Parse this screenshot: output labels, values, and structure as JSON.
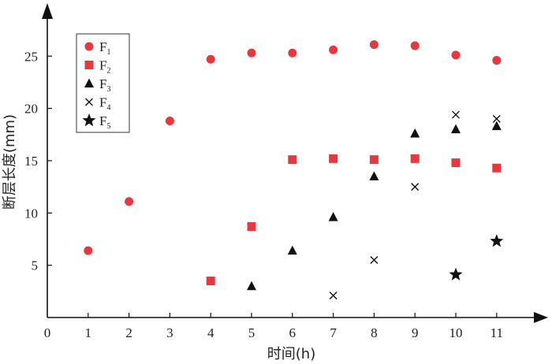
{
  "chart_data": {
    "type": "scatter",
    "xlabel": "时间(h)",
    "ylabel": "断层长度(mm)",
    "xlim": [
      0,
      11.8
    ],
    "ylim": [
      0,
      27.9
    ],
    "x_ticks": [
      0,
      1,
      2,
      3,
      4,
      5,
      6,
      7,
      8,
      9,
      10,
      11
    ],
    "y_ticks": [
      5,
      10,
      15,
      20,
      25
    ],
    "grid": false,
    "legend_placement": "top-left",
    "series": [
      {
        "name": "F",
        "sub": "1",
        "marker": "circle",
        "color": "#e8383d",
        "points": [
          [
            1,
            6.4
          ],
          [
            2,
            11.1
          ],
          [
            3,
            18.8
          ],
          [
            4,
            24.7
          ],
          [
            5,
            25.3
          ],
          [
            6,
            25.3
          ],
          [
            7,
            25.6
          ],
          [
            8,
            26.1
          ],
          [
            9,
            26.0
          ],
          [
            10,
            25.1
          ],
          [
            11,
            24.6
          ]
        ]
      },
      {
        "name": "F",
        "sub": "2",
        "marker": "square",
        "color": "#e8383d",
        "points": [
          [
            4,
            3.5
          ],
          [
            5,
            8.7
          ],
          [
            6,
            15.1
          ],
          [
            7,
            15.2
          ],
          [
            8,
            15.1
          ],
          [
            9,
            15.2
          ],
          [
            10,
            14.8
          ],
          [
            11,
            14.3
          ]
        ]
      },
      {
        "name": "F",
        "sub": "3",
        "marker": "triangle",
        "color": "#111111",
        "points": [
          [
            5,
            3.0
          ],
          [
            6,
            6.4
          ],
          [
            7,
            9.6
          ],
          [
            8,
            13.5
          ],
          [
            9,
            17.6
          ],
          [
            10,
            18.0
          ],
          [
            11,
            18.3
          ]
        ]
      },
      {
        "name": "F",
        "sub": "4",
        "marker": "cross",
        "color": "#111111",
        "points": [
          [
            7,
            2.1
          ],
          [
            8,
            5.5
          ],
          [
            9,
            12.5
          ],
          [
            10,
            19.4
          ],
          [
            11,
            19.0
          ]
        ]
      },
      {
        "name": "F",
        "sub": "5",
        "marker": "star",
        "color": "#111111",
        "points": [
          [
            10,
            4.1
          ],
          [
            11,
            7.3
          ]
        ]
      }
    ]
  }
}
